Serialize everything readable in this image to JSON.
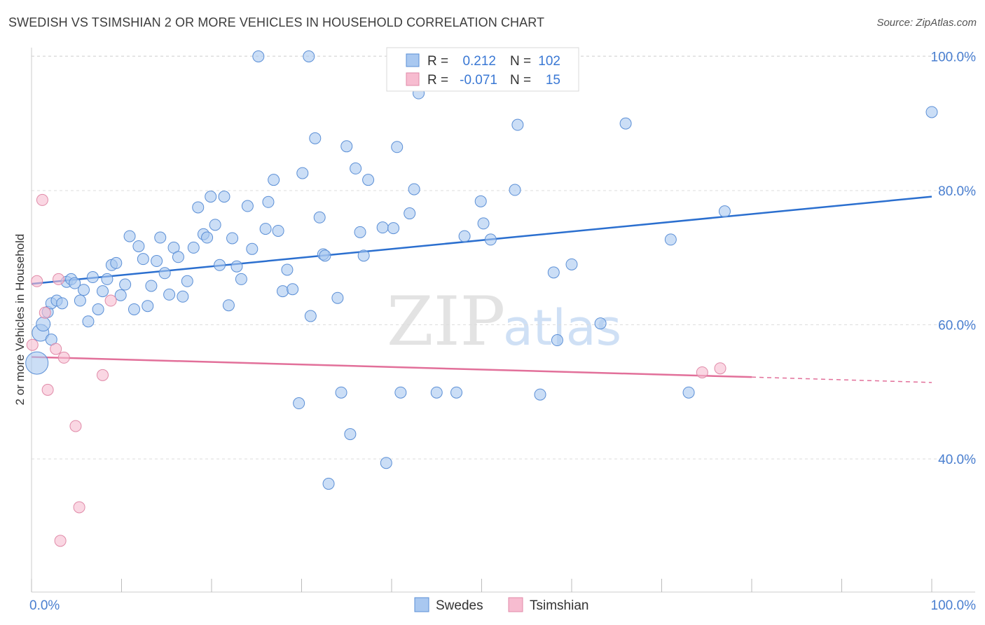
{
  "title": "SWEDISH VS TSIMSHIAN 2 OR MORE VEHICLES IN HOUSEHOLD CORRELATION CHART",
  "source": "Source: ZipAtlas.com",
  "colors": {
    "swedes_fill": "#a9c8f0",
    "swedes_stroke": "#5b8fd6",
    "swedes_line": "#2b6fcf",
    "tsimshian_fill": "#f7bcd0",
    "tsimshian_stroke": "#e08aa8",
    "tsimshian_line": "#e2709a",
    "accent_text": "#3a78d4"
  },
  "legend_top": [
    {
      "r_label": "R =",
      "r_value": "0.212",
      "n_label": "N =",
      "n_value": "102"
    },
    {
      "r_label": "R =",
      "r_value": "-0.071",
      "n_label": "N =",
      "n_value": "15"
    }
  ],
  "legend_bottom": [
    "Swedes",
    "Tsimshian"
  ],
  "watermark": {
    "zip": "ZIP",
    "atlas": "atlas"
  },
  "chart_data": {
    "type": "scatter",
    "title": "SWEDISH VS TSIMSHIAN 2 OR MORE VEHICLES IN HOUSEHOLD CORRELATION CHART",
    "xlabel": "",
    "ylabel": "2 or more Vehicles in Household",
    "xlim": [
      0,
      100
    ],
    "ylim": [
      18,
      102
    ],
    "x_tick_labels": [
      "0.0%",
      "100.0%"
    ],
    "y_ticks": [
      40,
      60,
      80,
      100
    ],
    "y_tick_labels": [
      "40.0%",
      "60.0%",
      "80.0%",
      "100.0%"
    ],
    "series": [
      {
        "name": "Swedes",
        "trend": {
          "x0": 0,
          "y0": 66.1,
          "x1": 100,
          "y1": 79.1
        },
        "points": [
          [
            0.6,
            54.3,
            16
          ],
          [
            1.0,
            58.8,
            12
          ],
          [
            1.3,
            60.1,
            10
          ],
          [
            1.8,
            61.9,
            8
          ],
          [
            2.2,
            63.2,
            8
          ],
          [
            2.8,
            63.6,
            8
          ],
          [
            3.4,
            63.2,
            8
          ],
          [
            3.9,
            66.4,
            8
          ],
          [
            4.4,
            66.8,
            8
          ],
          [
            4.8,
            66.2,
            8
          ],
          [
            5.4,
            63.6,
            8
          ],
          [
            5.8,
            65.2,
            8
          ],
          [
            6.3,
            60.5,
            8
          ],
          [
            6.8,
            67.1,
            8
          ],
          [
            7.4,
            62.3,
            8
          ],
          [
            7.9,
            65.0,
            8
          ],
          [
            8.4,
            66.8,
            8
          ],
          [
            8.9,
            68.9,
            8
          ],
          [
            9.4,
            69.2,
            8
          ],
          [
            9.9,
            64.4,
            8
          ],
          [
            10.4,
            66.0,
            8
          ],
          [
            10.9,
            73.2,
            8
          ],
          [
            11.4,
            62.3,
            8
          ],
          [
            11.9,
            71.7,
            8
          ],
          [
            12.4,
            69.8,
            8
          ],
          [
            12.9,
            62.8,
            8
          ],
          [
            13.3,
            65.8,
            8
          ],
          [
            13.9,
            69.5,
            8
          ],
          [
            14.3,
            73.0,
            8
          ],
          [
            14.8,
            67.7,
            8
          ],
          [
            15.3,
            64.5,
            8
          ],
          [
            15.8,
            71.5,
            8
          ],
          [
            16.3,
            70.1,
            8
          ],
          [
            16.8,
            64.2,
            8
          ],
          [
            17.3,
            66.5,
            8
          ],
          [
            18.0,
            71.5,
            8
          ],
          [
            18.5,
            77.5,
            8
          ],
          [
            19.1,
            73.5,
            8
          ],
          [
            19.5,
            73.0,
            8
          ],
          [
            19.9,
            79.1,
            8
          ],
          [
            20.4,
            74.9,
            8
          ],
          [
            20.9,
            68.9,
            8
          ],
          [
            21.4,
            79.1,
            8
          ],
          [
            21.9,
            62.9,
            8
          ],
          [
            22.3,
            72.9,
            8
          ],
          [
            22.8,
            68.7,
            8
          ],
          [
            23.3,
            66.8,
            8
          ],
          [
            24.0,
            77.7,
            8
          ],
          [
            24.5,
            71.3,
            8
          ],
          [
            25.2,
            100.0,
            8
          ],
          [
            26.0,
            74.3,
            8
          ],
          [
            26.3,
            78.3,
            8
          ],
          [
            26.9,
            81.6,
            8
          ],
          [
            27.4,
            74.0,
            8
          ],
          [
            27.9,
            65.0,
            8
          ],
          [
            28.4,
            68.2,
            8
          ],
          [
            29.0,
            65.3,
            8
          ],
          [
            29.7,
            48.3,
            8
          ],
          [
            30.1,
            82.6,
            8
          ],
          [
            30.8,
            100.0,
            8
          ],
          [
            31.0,
            61.3,
            8
          ],
          [
            31.5,
            87.8,
            8
          ],
          [
            32.0,
            76.0,
            8
          ],
          [
            32.4,
            70.5,
            8
          ],
          [
            32.6,
            70.3,
            8
          ],
          [
            33.0,
            36.3,
            8
          ],
          [
            34.0,
            64.0,
            8
          ],
          [
            34.4,
            49.9,
            8
          ],
          [
            35.0,
            86.6,
            8
          ],
          [
            35.4,
            43.7,
            8
          ],
          [
            36.0,
            83.3,
            8
          ],
          [
            36.5,
            73.8,
            8
          ],
          [
            36.9,
            70.3,
            8
          ],
          [
            37.4,
            81.6,
            8
          ],
          [
            39.0,
            74.5,
            8
          ],
          [
            39.4,
            39.4,
            8
          ],
          [
            40.2,
            74.4,
            8
          ],
          [
            40.6,
            86.5,
            8
          ],
          [
            41.0,
            49.9,
            8
          ],
          [
            42.0,
            76.6,
            8
          ],
          [
            42.5,
            80.2,
            8
          ],
          [
            43.0,
            94.5,
            8
          ],
          [
            45.0,
            49.9,
            8
          ],
          [
            47.2,
            49.9,
            8
          ],
          [
            48.1,
            73.2,
            8
          ],
          [
            49.9,
            78.4,
            8
          ],
          [
            50.2,
            75.1,
            8
          ],
          [
            51.0,
            72.7,
            8
          ],
          [
            53.7,
            80.1,
            8
          ],
          [
            54.0,
            89.8,
            8
          ],
          [
            56.0,
            100.0,
            8
          ],
          [
            56.5,
            49.6,
            8
          ],
          [
            58.0,
            67.8,
            8
          ],
          [
            58.4,
            57.7,
            8
          ],
          [
            60.0,
            69.0,
            8
          ],
          [
            63.2,
            60.2,
            8
          ],
          [
            66.0,
            90.0,
            8
          ],
          [
            71.0,
            72.7,
            8
          ],
          [
            73.0,
            49.9,
            8
          ],
          [
            77.0,
            76.9,
            8
          ],
          [
            100.0,
            91.7,
            8
          ],
          [
            2.2,
            57.8,
            8
          ]
        ]
      },
      {
        "name": "Tsimshian",
        "trend": {
          "x0": 0,
          "y0": 55.2,
          "x1": 80,
          "y1": 52.2,
          "dash_to": 100,
          "dash_y": 51.4
        },
        "points": [
          [
            0.1,
            57.0,
            8
          ],
          [
            0.6,
            66.5,
            8
          ],
          [
            1.2,
            78.6,
            8
          ],
          [
            1.5,
            61.8,
            8
          ],
          [
            1.8,
            50.3,
            8
          ],
          [
            2.7,
            56.4,
            8
          ],
          [
            3.0,
            66.8,
            8
          ],
          [
            3.6,
            55.1,
            8
          ],
          [
            4.9,
            44.9,
            8
          ],
          [
            5.3,
            32.8,
            8
          ],
          [
            3.2,
            27.8,
            8
          ],
          [
            7.9,
            52.5,
            8
          ],
          [
            8.8,
            63.6,
            8
          ],
          [
            74.5,
            52.9,
            8
          ],
          [
            76.5,
            53.5,
            8
          ]
        ]
      }
    ]
  }
}
